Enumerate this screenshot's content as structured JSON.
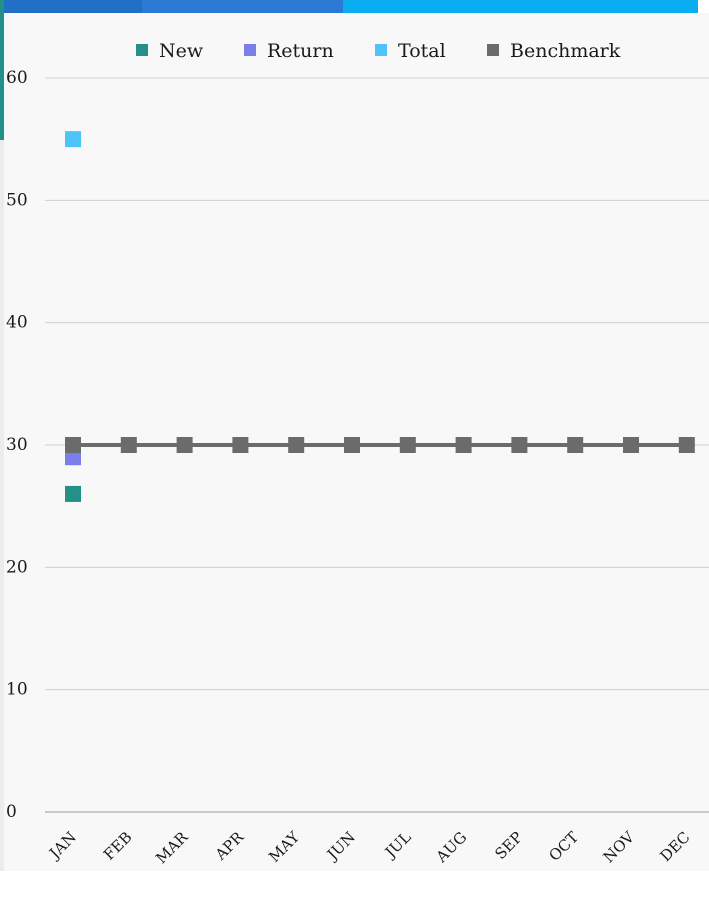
{
  "chart_data": {
    "type": "line",
    "title": "",
    "xlabel": "",
    "ylabel": "",
    "categories": [
      "JAN",
      "FEB",
      "MAR",
      "APR",
      "MAY",
      "JUN",
      "JUL",
      "AUG",
      "SEP",
      "OCT",
      "NOV",
      "DEC"
    ],
    "ylim": [
      0,
      60
    ],
    "yticks": [
      0,
      10,
      20,
      30,
      40,
      50,
      60
    ],
    "grid": true,
    "legend_position": "top",
    "series": [
      {
        "name": "New",
        "color": "#258f8a",
        "values": [
          26,
          null,
          null,
          null,
          null,
          null,
          null,
          null,
          null,
          null,
          null,
          null
        ]
      },
      {
        "name": "Return",
        "color": "#7b7de8",
        "values": [
          29,
          null,
          null,
          null,
          null,
          null,
          null,
          null,
          null,
          null,
          null,
          null
        ]
      },
      {
        "name": "Total",
        "color": "#4ec3f7",
        "values": [
          55,
          null,
          null,
          null,
          null,
          null,
          null,
          null,
          null,
          null,
          null,
          null
        ]
      },
      {
        "name": "Benchmark",
        "color": "#6b6b6b",
        "values": [
          30,
          30,
          30,
          30,
          30,
          30,
          30,
          30,
          30,
          30,
          30,
          30
        ]
      }
    ]
  }
}
